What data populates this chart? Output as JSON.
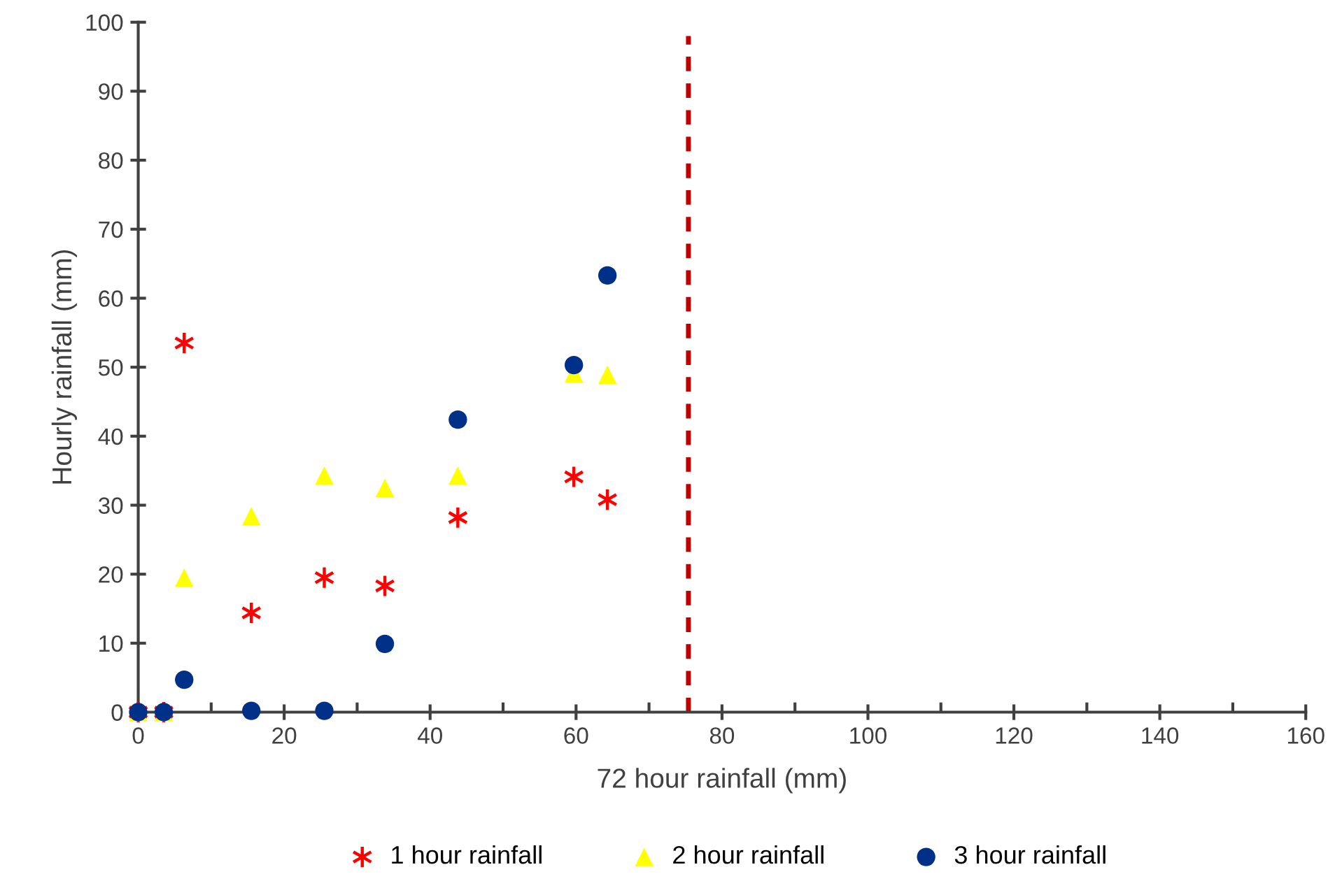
{
  "chart_data": {
    "type": "scatter",
    "xlabel": "72 hour rainfall (mm)",
    "ylabel": "Hourly rainfall (mm)",
    "xlim": [
      0,
      160
    ],
    "xticks": [
      0,
      20,
      40,
      60,
      80,
      100,
      120,
      140,
      160
    ],
    "ylim": [
      0,
      100
    ],
    "yticks": [
      0,
      10,
      20,
      30,
      40,
      50,
      60,
      70,
      80,
      90,
      100
    ],
    "grid": false,
    "legend": "bottom",
    "series": [
      {
        "name": "1 hour rainfall",
        "color": "#ff0000",
        "marker": "cross",
        "x": [
          0,
          3.5,
          6.3,
          15.5,
          25.5,
          33.8,
          43.8,
          59.7,
          64.3
        ],
        "values": [
          0,
          0,
          53.5,
          14.4,
          19.5,
          18.3,
          28.2,
          34.1,
          30.8
        ]
      },
      {
        "name": "2 hour rainfall",
        "color": "#ffff00",
        "marker": "triangle",
        "x": [
          0,
          3.5,
          6.3,
          15.5,
          25.5,
          33.8,
          43.8,
          59.7,
          64.3
        ],
        "values": [
          0,
          0,
          19.5,
          28.4,
          34.3,
          32.5,
          34.3,
          49.1,
          48.9
        ]
      },
      {
        "name": "3 hour rainfall",
        "color": "#003087",
        "marker": "circle",
        "x": [
          0,
          3.5,
          6.3,
          15.5,
          25.5,
          33.8,
          43.8,
          59.7,
          64.3
        ],
        "values": [
          0,
          0,
          4.7,
          0.2,
          0.2,
          9.9,
          42.4,
          50.3,
          63.3
        ]
      }
    ],
    "ref_lines": [
      {
        "axis": "x",
        "value": 75.4,
        "color": "#c00000",
        "line_style": "dashed"
      }
    ]
  }
}
